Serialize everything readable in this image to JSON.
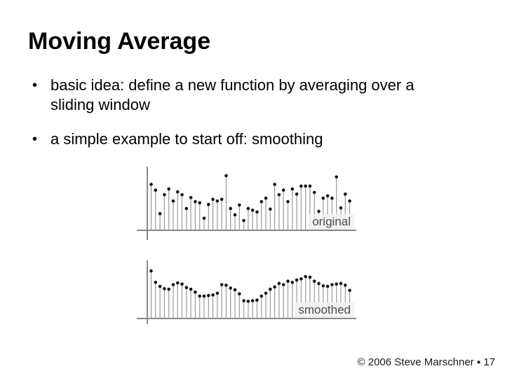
{
  "slide": {
    "title": "Moving Average",
    "bullet_char": "•",
    "bullets": [
      {
        "text": "basic idea: define a new function by averaging over a\nsliding window"
      },
      {
        "text": "a simple example to start off: smoothing"
      }
    ],
    "footer": "© 2006 Steve Marschner ▪ 17"
  },
  "chart_data": [
    {
      "type": "scatter",
      "style": "stem",
      "label": "original",
      "title": "",
      "xlabel": "",
      "ylabel": "",
      "ylim": [
        0,
        1
      ],
      "grid": false,
      "axis_color": "#8a8a8a",
      "stem_color": "#9a9a9a",
      "dot_color": "#141414",
      "values": [
        0.8,
        0.7,
        0.29,
        0.62,
        0.72,
        0.51,
        0.67,
        0.62,
        0.38,
        0.57,
        0.5,
        0.48,
        0.21,
        0.45,
        0.54,
        0.51,
        0.54,
        0.95,
        0.38,
        0.27,
        0.44,
        0.17,
        0.38,
        0.35,
        0.32,
        0.5,
        0.56,
        0.37,
        0.8,
        0.62,
        0.7,
        0.5,
        0.72,
        0.63,
        0.77,
        0.77,
        0.77,
        0.66,
        0.33,
        0.56,
        0.6,
        0.56,
        0.93,
        0.39,
        0.63,
        0.51
      ]
    },
    {
      "type": "scatter",
      "style": "stem",
      "label": "smoothed",
      "title": "",
      "xlabel": "",
      "ylabel": "",
      "ylim": [
        0,
        1
      ],
      "grid": false,
      "axis_color": "#8a8a8a",
      "stem_color": "#9a9a9a",
      "dot_color": "#141414",
      "values": [
        0.83,
        0.63,
        0.56,
        0.52,
        0.51,
        0.59,
        0.62,
        0.6,
        0.54,
        0.51,
        0.46,
        0.39,
        0.39,
        0.4,
        0.41,
        0.44,
        0.59,
        0.58,
        0.53,
        0.5,
        0.43,
        0.31,
        0.3,
        0.31,
        0.32,
        0.39,
        0.44,
        0.51,
        0.55,
        0.61,
        0.59,
        0.65,
        0.63,
        0.67,
        0.69,
        0.73,
        0.72,
        0.65,
        0.61,
        0.57,
        0.56,
        0.59,
        0.6,
        0.61,
        0.58,
        0.49
      ]
    }
  ]
}
